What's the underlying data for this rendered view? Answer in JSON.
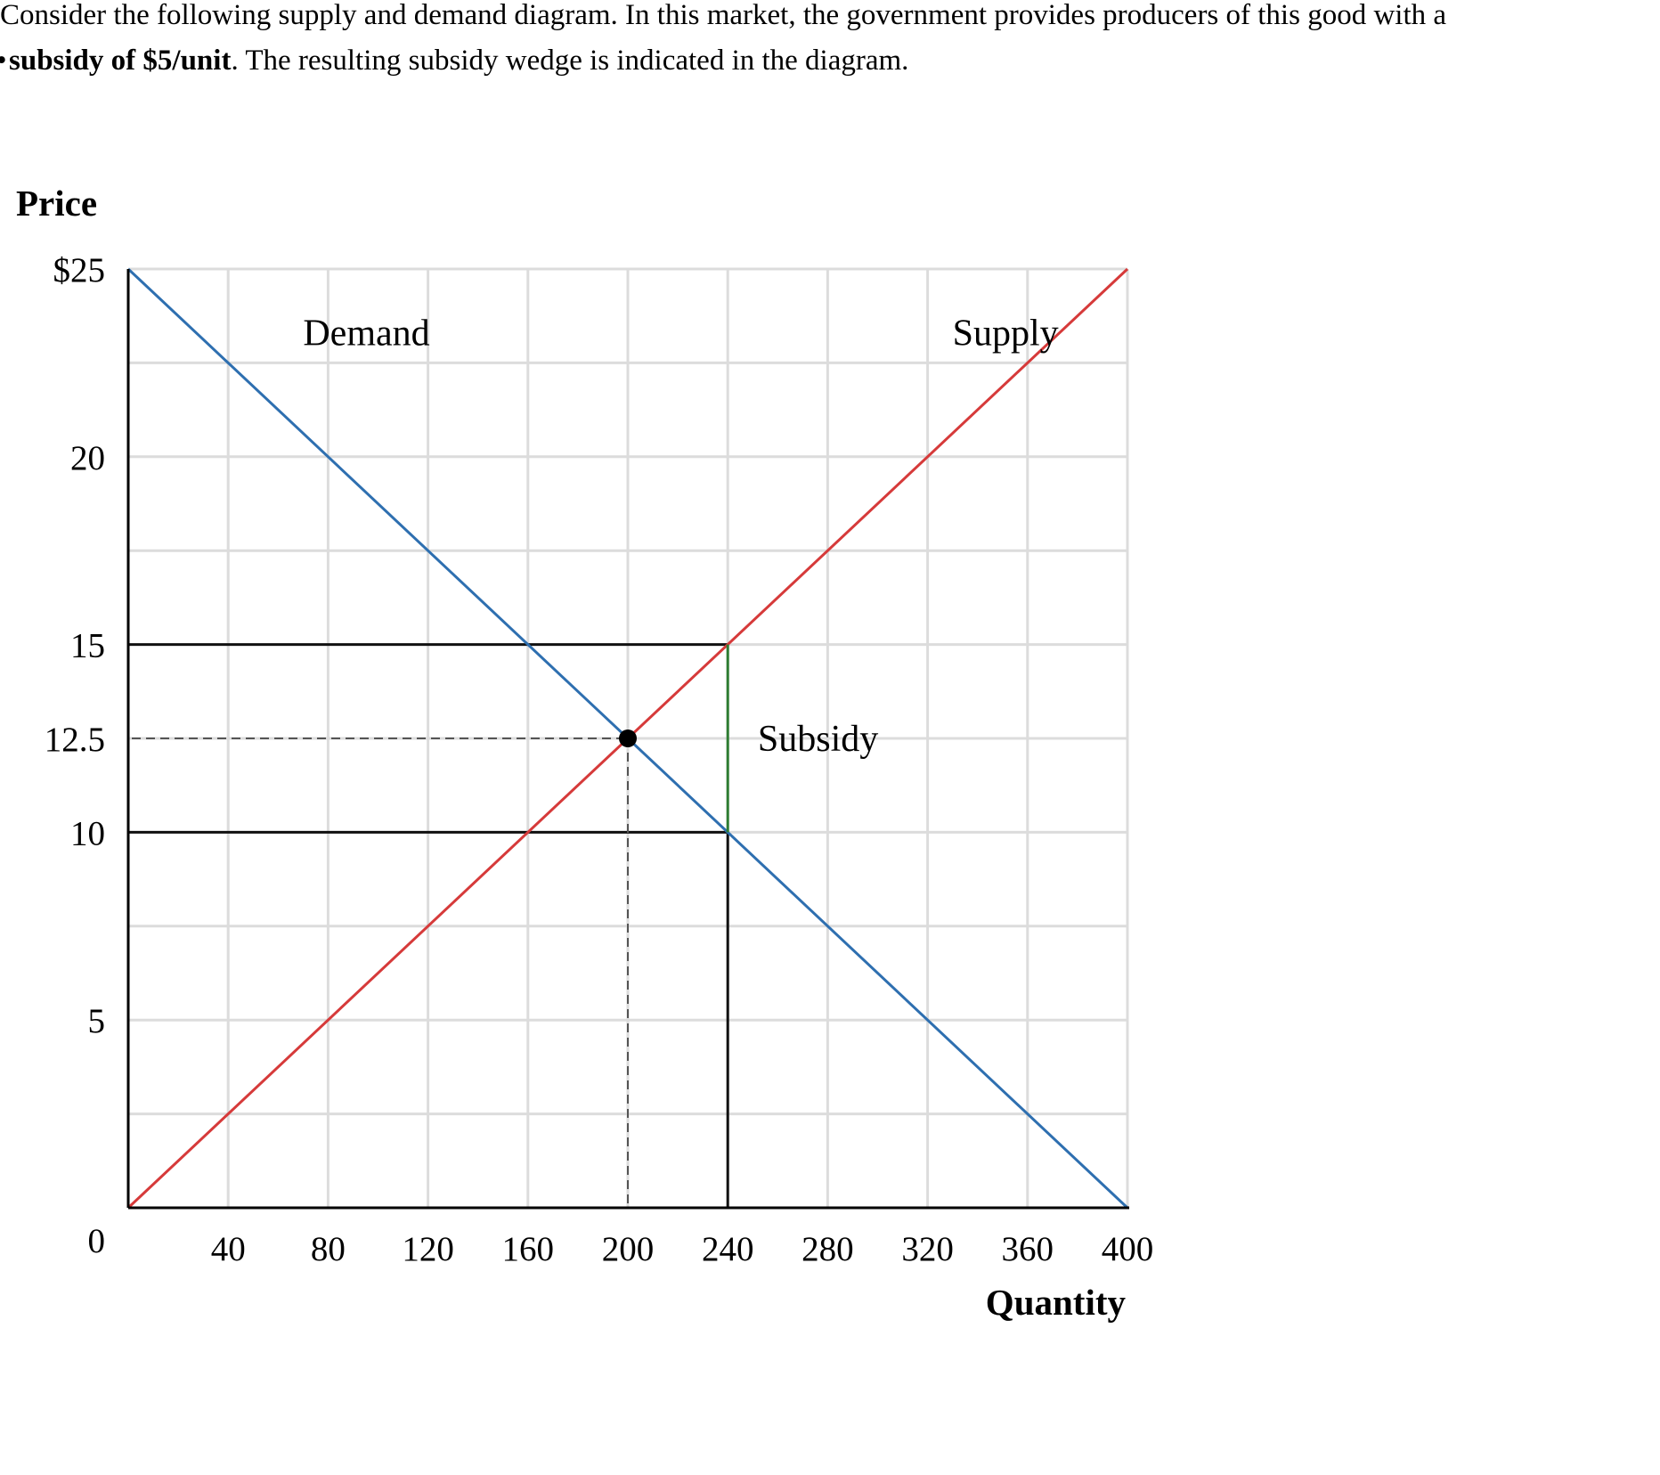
{
  "intro": {
    "part1": "Consider the following supply and demand diagram. In this market, the government provides producers of this good with a",
    "bullet": "•",
    "bold": "subsidy of $5/unit",
    "part2": ". The resulting subsidy wedge is indicated in the diagram."
  },
  "chart_data": {
    "type": "line",
    "ylabel": "Price",
    "xlabel": "Quantity",
    "xlim": [
      0,
      400
    ],
    "ylim": [
      0,
      25
    ],
    "grid": true,
    "x_gridlines": [
      40,
      80,
      120,
      160,
      200,
      240,
      280,
      320,
      360,
      400
    ],
    "y_gridlines": [
      2.5,
      5,
      7.5,
      10,
      12.5,
      15,
      17.5,
      20,
      22.5,
      25
    ],
    "x_ticks": [
      {
        "value": 40,
        "label": "40"
      },
      {
        "value": 80,
        "label": "80"
      },
      {
        "value": 120,
        "label": "120"
      },
      {
        "value": 160,
        "label": "160"
      },
      {
        "value": 200,
        "label": "200"
      },
      {
        "value": 240,
        "label": "240"
      },
      {
        "value": 280,
        "label": "280"
      },
      {
        "value": 320,
        "label": "320"
      },
      {
        "value": 360,
        "label": "360"
      },
      {
        "value": 400,
        "label": "400"
      }
    ],
    "y_ticks": [
      {
        "value": 25,
        "label": "$25"
      },
      {
        "value": 20,
        "label": "20"
      },
      {
        "value": 15,
        "label": "15"
      },
      {
        "value": 12.5,
        "label": "12.5"
      },
      {
        "value": 10,
        "label": "10"
      },
      {
        "value": 5,
        "label": "5"
      },
      {
        "value": 0,
        "label": "0"
      }
    ],
    "series": [
      {
        "name": "Demand",
        "color": "#2e6fb0",
        "x": [
          0,
          400
        ],
        "y": [
          25,
          0
        ],
        "label_at": {
          "x": 70,
          "y": 23.3
        }
      },
      {
        "name": "Supply",
        "color": "#d63a3a",
        "x": [
          0,
          400
        ],
        "y": [
          0,
          25
        ],
        "label_at": {
          "x": 330,
          "y": 23.3
        }
      }
    ],
    "equilibrium": {
      "x": 200,
      "y": 12.5
    },
    "subsidy": {
      "label": "Subsidy",
      "quantity": 240,
      "buyer_price": 10,
      "seller_price": 15,
      "color": "#2e7d32",
      "label_at": {
        "x": 252,
        "y": 12.5
      }
    }
  }
}
